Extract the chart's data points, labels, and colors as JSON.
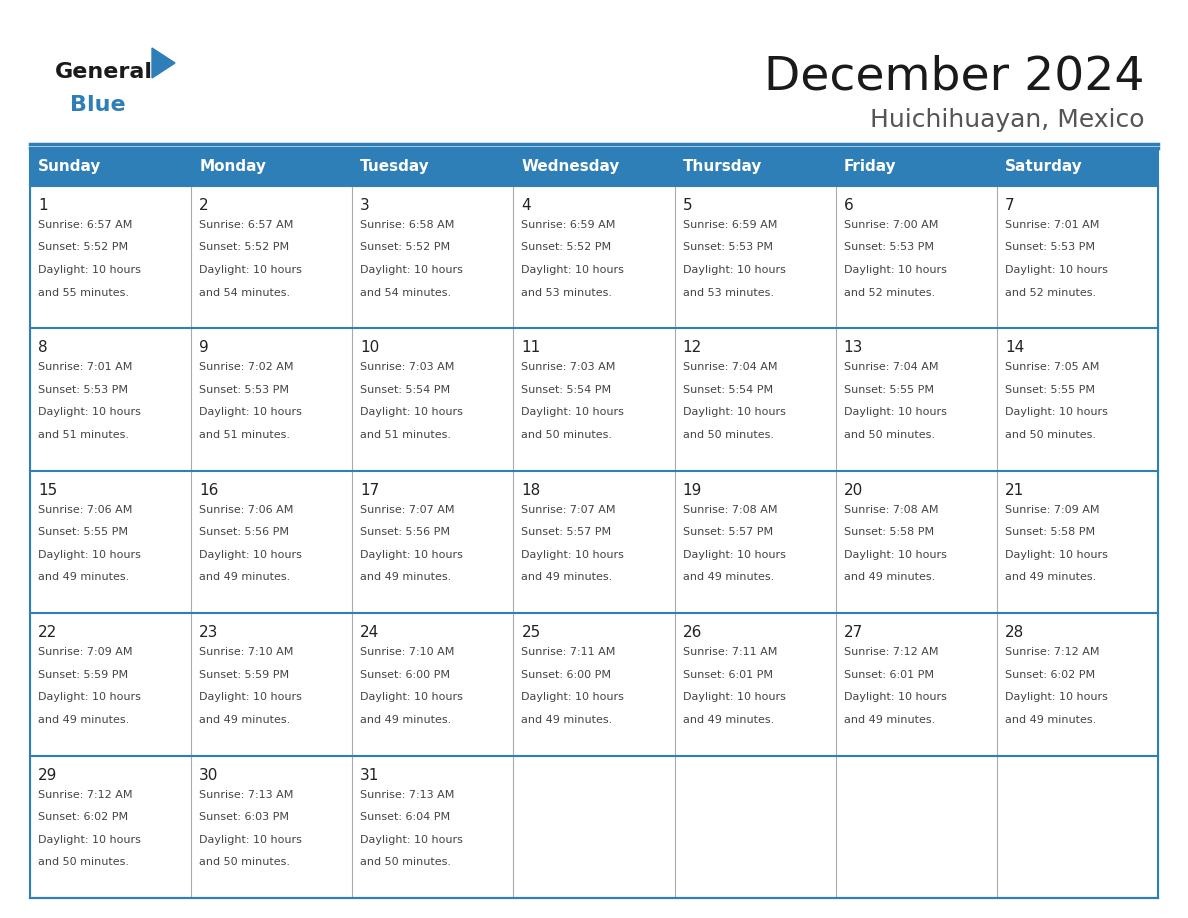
{
  "title": "December 2024",
  "subtitle": "Huichihuayan, Mexico",
  "days_of_week": [
    "Sunday",
    "Monday",
    "Tuesday",
    "Wednesday",
    "Thursday",
    "Friday",
    "Saturday"
  ],
  "header_bg": "#2e7eb8",
  "header_text_color": "#ffffff",
  "cell_bg": "#ffffff",
  "border_color": "#2e7eb8",
  "grid_color": "#aaaaaa",
  "text_color": "#444444",
  "title_color": "#1a1a1a",
  "logo_general_color": "#1a1a1a",
  "logo_blue_color": "#2e7eb8",
  "logo_triangle_color": "#2e7eb8",
  "calendar_data": [
    [
      {
        "day": 1,
        "sunrise": "6:57 AM",
        "sunset": "5:52 PM",
        "daylight": "10 hours and 55 minutes"
      },
      {
        "day": 2,
        "sunrise": "6:57 AM",
        "sunset": "5:52 PM",
        "daylight": "10 hours and 54 minutes"
      },
      {
        "day": 3,
        "sunrise": "6:58 AM",
        "sunset": "5:52 PM",
        "daylight": "10 hours and 54 minutes"
      },
      {
        "day": 4,
        "sunrise": "6:59 AM",
        "sunset": "5:52 PM",
        "daylight": "10 hours and 53 minutes"
      },
      {
        "day": 5,
        "sunrise": "6:59 AM",
        "sunset": "5:53 PM",
        "daylight": "10 hours and 53 minutes"
      },
      {
        "day": 6,
        "sunrise": "7:00 AM",
        "sunset": "5:53 PM",
        "daylight": "10 hours and 52 minutes"
      },
      {
        "day": 7,
        "sunrise": "7:01 AM",
        "sunset": "5:53 PM",
        "daylight": "10 hours and 52 minutes"
      }
    ],
    [
      {
        "day": 8,
        "sunrise": "7:01 AM",
        "sunset": "5:53 PM",
        "daylight": "10 hours and 51 minutes"
      },
      {
        "day": 9,
        "sunrise": "7:02 AM",
        "sunset": "5:53 PM",
        "daylight": "10 hours and 51 minutes"
      },
      {
        "day": 10,
        "sunrise": "7:03 AM",
        "sunset": "5:54 PM",
        "daylight": "10 hours and 51 minutes"
      },
      {
        "day": 11,
        "sunrise": "7:03 AM",
        "sunset": "5:54 PM",
        "daylight": "10 hours and 50 minutes"
      },
      {
        "day": 12,
        "sunrise": "7:04 AM",
        "sunset": "5:54 PM",
        "daylight": "10 hours and 50 minutes"
      },
      {
        "day": 13,
        "sunrise": "7:04 AM",
        "sunset": "5:55 PM",
        "daylight": "10 hours and 50 minutes"
      },
      {
        "day": 14,
        "sunrise": "7:05 AM",
        "sunset": "5:55 PM",
        "daylight": "10 hours and 50 minutes"
      }
    ],
    [
      {
        "day": 15,
        "sunrise": "7:06 AM",
        "sunset": "5:55 PM",
        "daylight": "10 hours and 49 minutes"
      },
      {
        "day": 16,
        "sunrise": "7:06 AM",
        "sunset": "5:56 PM",
        "daylight": "10 hours and 49 minutes"
      },
      {
        "day": 17,
        "sunrise": "7:07 AM",
        "sunset": "5:56 PM",
        "daylight": "10 hours and 49 minutes"
      },
      {
        "day": 18,
        "sunrise": "7:07 AM",
        "sunset": "5:57 PM",
        "daylight": "10 hours and 49 minutes"
      },
      {
        "day": 19,
        "sunrise": "7:08 AM",
        "sunset": "5:57 PM",
        "daylight": "10 hours and 49 minutes"
      },
      {
        "day": 20,
        "sunrise": "7:08 AM",
        "sunset": "5:58 PM",
        "daylight": "10 hours and 49 minutes"
      },
      {
        "day": 21,
        "sunrise": "7:09 AM",
        "sunset": "5:58 PM",
        "daylight": "10 hours and 49 minutes"
      }
    ],
    [
      {
        "day": 22,
        "sunrise": "7:09 AM",
        "sunset": "5:59 PM",
        "daylight": "10 hours and 49 minutes"
      },
      {
        "day": 23,
        "sunrise": "7:10 AM",
        "sunset": "5:59 PM",
        "daylight": "10 hours and 49 minutes"
      },
      {
        "day": 24,
        "sunrise": "7:10 AM",
        "sunset": "6:00 PM",
        "daylight": "10 hours and 49 minutes"
      },
      {
        "day": 25,
        "sunrise": "7:11 AM",
        "sunset": "6:00 PM",
        "daylight": "10 hours and 49 minutes"
      },
      {
        "day": 26,
        "sunrise": "7:11 AM",
        "sunset": "6:01 PM",
        "daylight": "10 hours and 49 minutes"
      },
      {
        "day": 27,
        "sunrise": "7:12 AM",
        "sunset": "6:01 PM",
        "daylight": "10 hours and 49 minutes"
      },
      {
        "day": 28,
        "sunrise": "7:12 AM",
        "sunset": "6:02 PM",
        "daylight": "10 hours and 49 minutes"
      }
    ],
    [
      {
        "day": 29,
        "sunrise": "7:12 AM",
        "sunset": "6:02 PM",
        "daylight": "10 hours and 50 minutes"
      },
      {
        "day": 30,
        "sunrise": "7:13 AM",
        "sunset": "6:03 PM",
        "daylight": "10 hours and 50 minutes"
      },
      {
        "day": 31,
        "sunrise": "7:13 AM",
        "sunset": "6:04 PM",
        "daylight": "10 hours and 50 minutes"
      },
      null,
      null,
      null,
      null
    ]
  ]
}
